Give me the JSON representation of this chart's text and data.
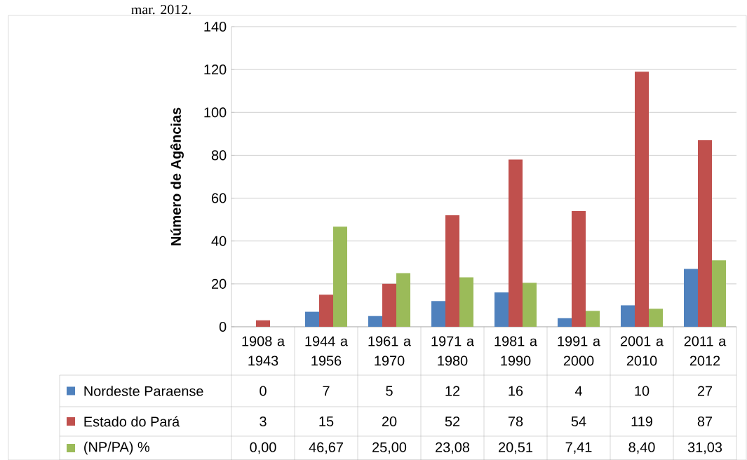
{
  "chart_data": {
    "type": "bar",
    "ylabel": "Número de Agências",
    "annotations": [
      "mar. 2012."
    ],
    "categories": [
      "1908 a 1943",
      "1944 a 1956",
      "1961 a 1970",
      "1971 a 1980",
      "1981 a 1990",
      "1991 a 2000",
      "2001 a 2010",
      "2011 a 2012"
    ],
    "series": [
      {
        "name": "Nordeste Paraense",
        "color": "#4f81bd",
        "values": [
          0,
          7,
          5,
          12,
          16,
          4,
          10,
          27
        ],
        "value_labels": [
          "0",
          "7",
          "5",
          "12",
          "16",
          "4",
          "10",
          "27"
        ]
      },
      {
        "name": "Estado do Pará",
        "color": "#c0504d",
        "values": [
          3,
          15,
          20,
          52,
          78,
          54,
          119,
          87
        ],
        "value_labels": [
          "3",
          "15",
          "20",
          "52",
          "78",
          "54",
          "119",
          "87"
        ]
      },
      {
        "name": "(NP/PA) %",
        "color": "#9bbb59",
        "values": [
          0,
          46.67,
          25,
          23.08,
          20.51,
          7.41,
          8.4,
          31.03
        ],
        "value_labels": [
          "0,00",
          "46,67",
          "25,00",
          "23,08",
          "20,51",
          "7,41",
          "8,40",
          "31,03"
        ]
      }
    ],
    "ylim": [
      0,
      140
    ],
    "yticks": [
      0,
      20,
      40,
      60,
      80,
      100,
      120,
      140
    ],
    "grid": "y",
    "legend": "bottom"
  }
}
